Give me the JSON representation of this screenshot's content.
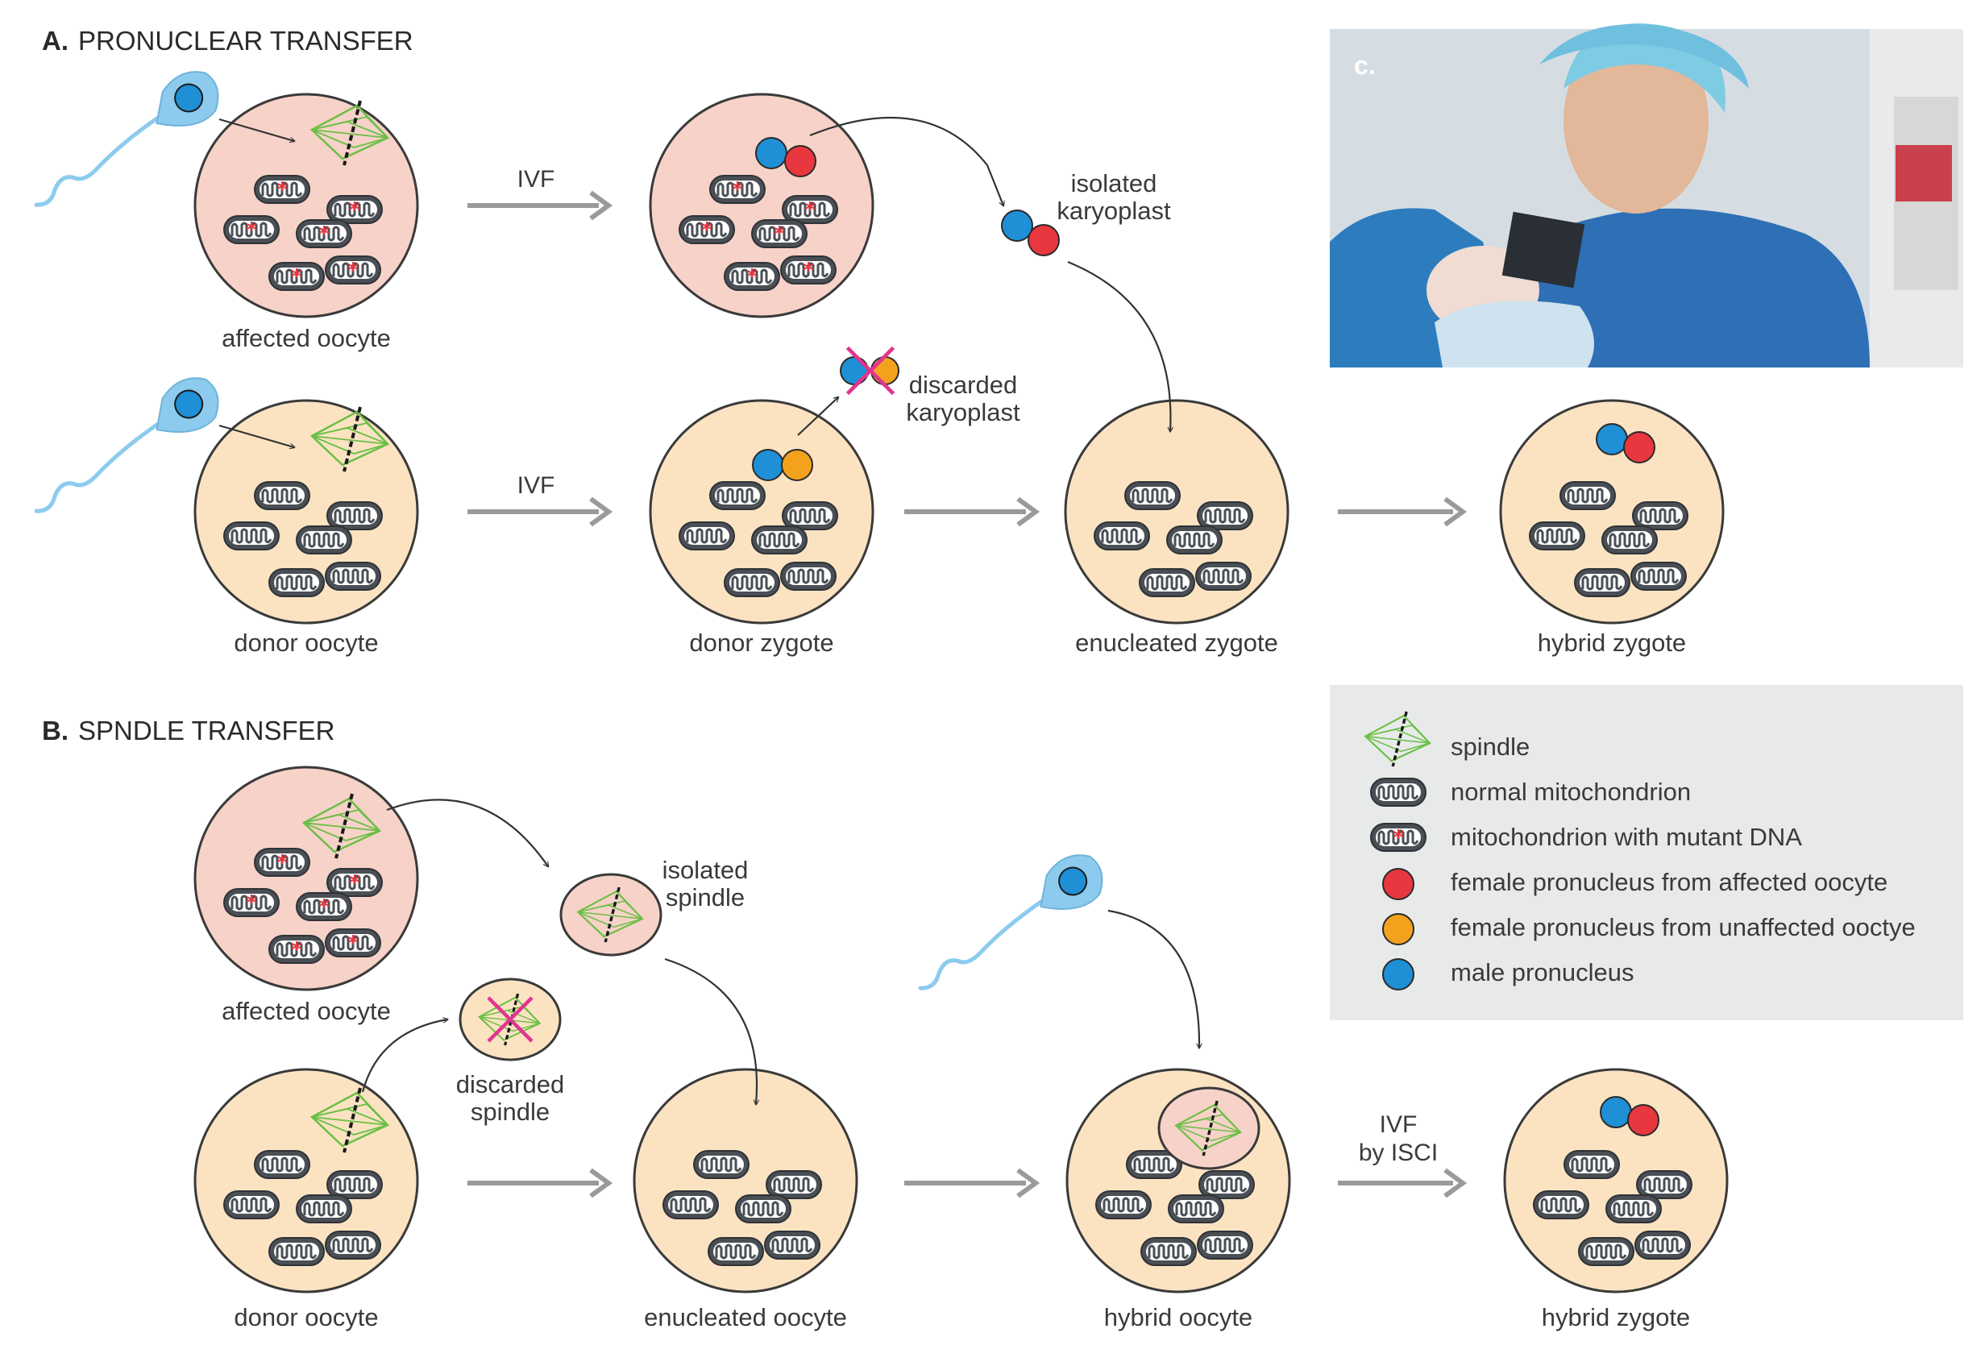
{
  "sections": {
    "a": {
      "letter": "A.",
      "title": "PRONUCLEAR TRANSFER"
    },
    "b": {
      "letter": "B.",
      "title": "SPNDLE TRANSFER"
    }
  },
  "panel_c": {
    "label": "c."
  },
  "labels": {
    "affected_oocyte": "affected oocyte",
    "donor_oocyte": "donor oocyte",
    "donor_zygote": "donor zygote",
    "enucleated_zygote": "enucleated zygote",
    "hybrid_zygote": "hybrid zygote",
    "enucleated_oocyte": "enucleated oocyte",
    "hybrid_oocyte": "hybrid oocyte",
    "ivf": "IVF",
    "by_isci": "by ISCI",
    "isolated": "isolated",
    "karyoplast": "karyoplast",
    "discarded": "discarded",
    "spindle": "spindle"
  },
  "legend": {
    "spindle": "spindle",
    "normal_mito": "normal mitochondrion",
    "mutant_mito": "mitochondrion with mutant DNA",
    "female_affected": "female pronucleus from affected oocyte",
    "female_unaffected": "female pronucleus from unaffected ooctye",
    "male": "male pronucleus"
  },
  "colors": {
    "affected_fill": "#f7d2c8",
    "donor_fill": "#fbe3c2",
    "cell_stroke": "#3a3a3a",
    "red_pronucleus": "#e8373f",
    "orange_pronucleus": "#f4a21e",
    "blue_pronucleus": "#1f8fd6",
    "sperm": "#8ccbee",
    "spindle_green": "#6abf45",
    "discard_cross": "#e0358f",
    "arrow_gray": "#9a9a9a",
    "legend_bg": "#e8eaea"
  },
  "icons": {
    "photo": "photo-placeholder",
    "mitochondrion": "mitochondrion-icon",
    "spindle": "spindle-icon",
    "sperm": "sperm-icon"
  }
}
